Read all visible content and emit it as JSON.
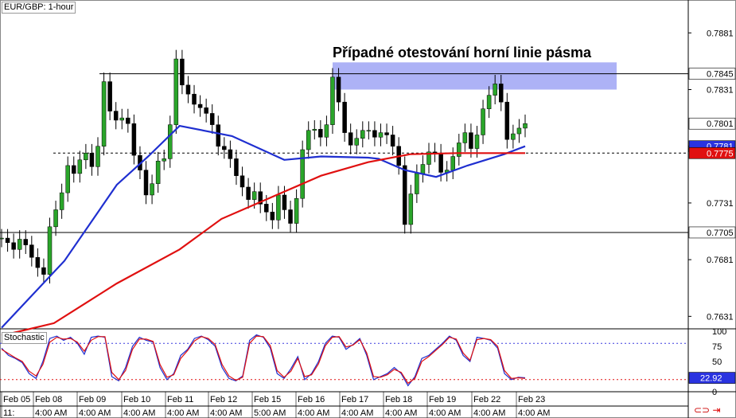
{
  "symbol_label": "EUR/GBP: 1-hour",
  "annotation": "Případné otestování horní linie pásma",
  "stochastic_label": "Stochastic",
  "current_price_label": "0.7801",
  "ma_blue_label": "0.7781",
  "ma_red_label": "0.7775",
  "stoch_value_label": "22.92",
  "chart_data": [
    {
      "type": "candlestick",
      "title": "EUR/GBP: 1-hour",
      "ylim": [
        0.762,
        0.791
      ],
      "y_ticks": [
        "0.7881",
        "0.7831",
        "0.7781",
        "0.7731",
        "0.7681",
        "0.7631"
      ],
      "x_ticks": [
        "Feb 05",
        "Feb 08",
        "Feb 09",
        "Feb 10",
        "Feb 11",
        "Feb 12",
        "Feb 15",
        "Feb 16",
        "Feb 17",
        "Feb 18",
        "Feb 19",
        "Feb 22",
        "Feb 23"
      ],
      "x_sub_ticks": [
        "11:",
        "4:00 AM",
        "4:00 AM",
        "4:00 AM",
        "4:00 AM",
        "4:00 AM",
        "5:00 AM",
        "4:00 AM",
        "4:00 AM",
        "4:00 AM",
        "4:00 AM",
        "4:00 AM",
        "4:00 AM"
      ],
      "horizontal_lines": [
        {
          "value": 0.7845,
          "style": "solid",
          "label": "0.7845"
        },
        {
          "value": 0.7705,
          "style": "solid",
          "label": "0.7705"
        },
        {
          "value": 0.7775,
          "style": "dashed"
        }
      ],
      "highlight_zone": {
        "from": 0.7831,
        "to": 0.7855
      },
      "close_series": [
        0.77,
        0.7696,
        0.769,
        0.7699,
        0.7694,
        0.7683,
        0.7674,
        0.7668,
        0.771,
        0.7725,
        0.774,
        0.7764,
        0.7757,
        0.7769,
        0.7775,
        0.7763,
        0.7781,
        0.7838,
        0.7812,
        0.7804,
        0.7806,
        0.7801,
        0.7773,
        0.776,
        0.7738,
        0.7748,
        0.7768,
        0.777,
        0.78,
        0.7858,
        0.7835,
        0.7827,
        0.7818,
        0.7815,
        0.781,
        0.78,
        0.7781,
        0.7778,
        0.777,
        0.7755,
        0.7745,
        0.7734,
        0.7741,
        0.773,
        0.7723,
        0.7716,
        0.7738,
        0.7725,
        0.7713,
        0.7735,
        0.7778,
        0.7795,
        0.7796,
        0.7789,
        0.78,
        0.7842,
        0.782,
        0.7793,
        0.7782,
        0.7788,
        0.7795,
        0.7795,
        0.7789,
        0.7793,
        0.7791,
        0.7781,
        0.7764,
        0.7712,
        0.7739,
        0.7757,
        0.7765,
        0.7776,
        0.7775,
        0.7758,
        0.776,
        0.7772,
        0.7784,
        0.7793,
        0.7779,
        0.7791,
        0.7814,
        0.7826,
        0.7836,
        0.782,
        0.7787,
        0.7792,
        0.7797,
        0.7801
      ],
      "series": [
        {
          "name": "",
          "color": "#1f2fd0",
          "points": [
            [
              0.0,
              0.7621
            ],
            [
              0.12,
              0.768
            ],
            [
              0.22,
              0.7747
            ],
            [
              0.28,
              0.7772
            ],
            [
              0.34,
              0.7799
            ],
            [
              0.44,
              0.779
            ],
            [
              0.54,
              0.7769
            ],
            [
              0.61,
              0.7772
            ],
            [
              0.7,
              0.7771
            ],
            [
              0.72,
              0.777
            ],
            [
              0.77,
              0.776
            ],
            [
              0.83,
              0.7754
            ],
            [
              0.89,
              0.7764
            ],
            [
              0.96,
              0.7774
            ],
            [
              1.0,
              0.7781
            ]
          ]
        },
        {
          "name": "",
          "color": "#e01010",
          "points": [
            [
              0.0,
              0.7614
            ],
            [
              0.1,
              0.7625
            ],
            [
              0.22,
              0.766
            ],
            [
              0.34,
              0.769
            ],
            [
              0.42,
              0.7717
            ],
            [
              0.52,
              0.7737
            ],
            [
              0.61,
              0.7755
            ],
            [
              0.7,
              0.7767
            ],
            [
              0.78,
              0.7774
            ],
            [
              0.87,
              0.7775
            ],
            [
              1.0,
              0.7775
            ]
          ]
        }
      ]
    },
    {
      "type": "line",
      "title": "Stochastic",
      "ylim": [
        0,
        100
      ],
      "y_ticks": [
        "100",
        "75",
        "50",
        "25",
        "0"
      ],
      "levels": [
        80,
        20
      ],
      "series": [
        {
          "name": "",
          "color": "#1f2fd0",
          "values": [
            72,
            60,
            55,
            48,
            30,
            22,
            50,
            88,
            92,
            85,
            90,
            80,
            62,
            90,
            92,
            90,
            25,
            18,
            40,
            75,
            90,
            85,
            82,
            40,
            20,
            30,
            60,
            70,
            88,
            92,
            86,
            75,
            40,
            22,
            18,
            26,
            85,
            94,
            90,
            72,
            30,
            22,
            38,
            58,
            20,
            30,
            50,
            80,
            92,
            90,
            70,
            78,
            88,
            60,
            20,
            25,
            30,
            40,
            30,
            10,
            25,
            55,
            60,
            70,
            80,
            92,
            85,
            60,
            50,
            90,
            88,
            85,
            72,
            30,
            20,
            24,
            23
          ]
        },
        {
          "name": "",
          "color": "#e01010",
          "values": [
            70,
            63,
            56,
            50,
            34,
            26,
            45,
            82,
            90,
            87,
            88,
            82,
            67,
            85,
            91,
            91,
            32,
            20,
            35,
            70,
            87,
            87,
            83,
            45,
            24,
            28,
            55,
            68,
            84,
            91,
            88,
            78,
            45,
            26,
            19,
            24,
            80,
            92,
            91,
            76,
            35,
            24,
            34,
            55,
            25,
            28,
            46,
            76,
            90,
            91,
            74,
            77,
            86,
            64,
            25,
            24,
            28,
            37,
            32,
            14,
            22,
            50,
            58,
            68,
            78,
            90,
            87,
            64,
            52,
            86,
            88,
            86,
            75,
            35,
            22,
            23,
            22
          ]
        }
      ],
      "current_value": "22.92"
    }
  ]
}
